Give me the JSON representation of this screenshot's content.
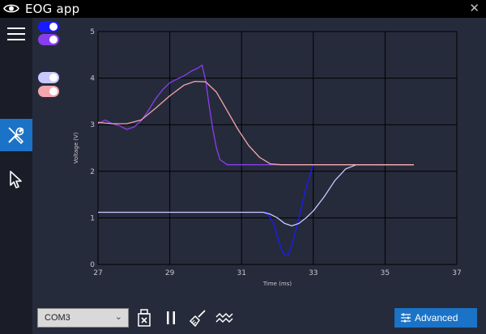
{
  "window": {
    "title": "EOG app"
  },
  "sidebar": {
    "items": [
      {
        "name": "menu",
        "icon": "hamburger-menu-icon"
      },
      {
        "name": "tools",
        "icon": "wrench-screwdriver-icon",
        "active": true
      },
      {
        "name": "pointer",
        "icon": "cursor-arrow-icon"
      }
    ]
  },
  "series_toggles": [
    {
      "color": "#1a1aff",
      "on": true
    },
    {
      "color": "#8a3df0",
      "on": true
    },
    {
      "color": "#c9c9ff",
      "on": true
    },
    {
      "color": "#f4a5ad",
      "on": true
    }
  ],
  "bottom": {
    "port_select": {
      "value": "COM3"
    },
    "tools": [
      "usb-disconnect-icon",
      "pause-icon",
      "broom-clear-icon",
      "waveform-icon"
    ],
    "advanced_label": "Advanced"
  },
  "chart_data": {
    "type": "line",
    "xlabel": "Time (ms)",
    "ylabel": "Voltage (V)",
    "xlim": [
      27,
      37
    ],
    "ylim": [
      0,
      5
    ],
    "xticks": [
      "27",
      "29",
      "31",
      "33",
      "35",
      "37"
    ],
    "yticks": [
      "0",
      "1",
      "2",
      "3",
      "4",
      "5"
    ],
    "grid": true,
    "series": [
      {
        "color": "#1a1aff",
        "points": [
          [
            27.0,
            1.12
          ],
          [
            28,
            1.12
          ],
          [
            29,
            1.12
          ],
          [
            30,
            1.12
          ],
          [
            31,
            1.12
          ],
          [
            31.7,
            1.12
          ],
          [
            31.8,
            1.0
          ],
          [
            31.9,
            0.85
          ],
          [
            32.0,
            0.6
          ],
          [
            32.1,
            0.35
          ],
          [
            32.2,
            0.2
          ],
          [
            32.3,
            0.2
          ],
          [
            32.4,
            0.4
          ],
          [
            32.6,
            1.0
          ],
          [
            32.8,
            1.65
          ],
          [
            33.0,
            2.14
          ],
          [
            33.5,
            2.14
          ],
          [
            34,
            2.14
          ],
          [
            35.8,
            2.14
          ]
        ]
      },
      {
        "color": "#8a3df0",
        "points": [
          [
            27.0,
            3.02
          ],
          [
            27.2,
            3.1
          ],
          [
            27.4,
            3.02
          ],
          [
            27.6,
            2.98
          ],
          [
            27.8,
            2.9
          ],
          [
            28.0,
            2.95
          ],
          [
            28.2,
            3.08
          ],
          [
            28.4,
            3.3
          ],
          [
            28.6,
            3.55
          ],
          [
            28.8,
            3.75
          ],
          [
            29.0,
            3.9
          ],
          [
            29.2,
            3.98
          ],
          [
            29.4,
            4.05
          ],
          [
            29.6,
            4.15
          ],
          [
            29.8,
            4.22
          ],
          [
            29.9,
            4.28
          ],
          [
            30.0,
            3.95
          ],
          [
            30.1,
            3.4
          ],
          [
            30.2,
            2.9
          ],
          [
            30.3,
            2.5
          ],
          [
            30.4,
            2.25
          ],
          [
            30.6,
            2.14
          ],
          [
            31,
            2.14
          ],
          [
            32,
            2.14
          ],
          [
            33,
            2.14
          ],
          [
            34,
            2.14
          ],
          [
            35.8,
            2.14
          ]
        ]
      },
      {
        "color": "#c9c9ff",
        "points": [
          [
            27.0,
            1.12
          ],
          [
            28,
            1.12
          ],
          [
            29,
            1.12
          ],
          [
            30,
            1.12
          ],
          [
            31,
            1.12
          ],
          [
            31.6,
            1.12
          ],
          [
            31.8,
            1.08
          ],
          [
            32.0,
            1.0
          ],
          [
            32.2,
            0.88
          ],
          [
            32.4,
            0.83
          ],
          [
            32.6,
            0.88
          ],
          [
            32.8,
            1.0
          ],
          [
            33.0,
            1.15
          ],
          [
            33.3,
            1.45
          ],
          [
            33.6,
            1.8
          ],
          [
            33.9,
            2.05
          ],
          [
            34.2,
            2.14
          ],
          [
            35,
            2.14
          ],
          [
            35.8,
            2.14
          ]
        ]
      },
      {
        "color": "#f4a5ad",
        "points": [
          [
            27.0,
            3.05
          ],
          [
            27.4,
            3.02
          ],
          [
            27.8,
            3.02
          ],
          [
            28.2,
            3.1
          ],
          [
            28.6,
            3.35
          ],
          [
            29.0,
            3.62
          ],
          [
            29.4,
            3.85
          ],
          [
            29.7,
            3.93
          ],
          [
            30.0,
            3.92
          ],
          [
            30.3,
            3.7
          ],
          [
            30.6,
            3.3
          ],
          [
            30.9,
            2.9
          ],
          [
            31.2,
            2.55
          ],
          [
            31.5,
            2.3
          ],
          [
            31.8,
            2.16
          ],
          [
            32.1,
            2.14
          ],
          [
            33,
            2.14
          ],
          [
            34,
            2.14
          ],
          [
            35.8,
            2.14
          ]
        ]
      }
    ]
  }
}
